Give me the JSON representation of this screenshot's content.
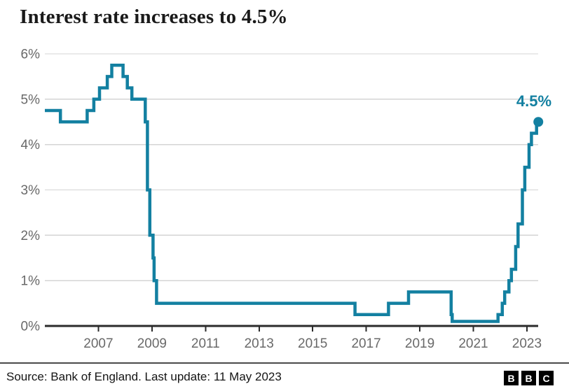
{
  "header": {
    "title": "Interest rate increases to 4.5%"
  },
  "footer": {
    "source": "Source: Bank of England. Last update: 11 May 2023",
    "logo_letters": [
      "B",
      "B",
      "C"
    ]
  },
  "colors": {
    "line": "#1380A1",
    "end_dot": "#1380A1",
    "end_label": "#1380A1",
    "grid": "#d4d4d4",
    "axis": "#2b2b2b",
    "tick_label": "#696969",
    "title_text": "#1a1a1a"
  },
  "chart_data": {
    "type": "line",
    "subtype": "step",
    "title": "Interest rate increases to 4.5%",
    "xlabel": "",
    "ylabel": "",
    "grid": "horizontal only",
    "legend": "none",
    "xlim": [
      2005.0,
      2023.42
    ],
    "ylim": [
      0,
      6
    ],
    "x_ticks": [
      2007,
      2009,
      2011,
      2013,
      2015,
      2017,
      2019,
      2021,
      2023
    ],
    "y_ticks": [
      {
        "value": 0,
        "label": "0%"
      },
      {
        "value": 1,
        "label": "1%"
      },
      {
        "value": 2,
        "label": "2%"
      },
      {
        "value": 3,
        "label": "3%"
      },
      {
        "value": 4,
        "label": "4%"
      },
      {
        "value": 5,
        "label": "5%"
      },
      {
        "value": 6,
        "label": "6%"
      }
    ],
    "end_annotation": {
      "label": "4.5%",
      "value": 4.5,
      "date": "May 2023"
    },
    "series": [
      {
        "name": "Bank of England base interest rate (%)",
        "points": [
          {
            "date": "Jan 2005",
            "x": 2005.0,
            "y": 4.75
          },
          {
            "date": "Aug 2005",
            "x": 2005.58,
            "y": 4.5
          },
          {
            "date": "Aug 2006",
            "x": 2006.58,
            "y": 4.75
          },
          {
            "date": "Nov 2006",
            "x": 2006.83,
            "y": 5.0
          },
          {
            "date": "Jan 2007",
            "x": 2007.04,
            "y": 5.25
          },
          {
            "date": "May 2007",
            "x": 2007.33,
            "y": 5.5
          },
          {
            "date": "Jul 2007",
            "x": 2007.5,
            "y": 5.75
          },
          {
            "date": "Dec 2007",
            "x": 2007.92,
            "y": 5.5
          },
          {
            "date": "Feb 2008",
            "x": 2008.08,
            "y": 5.25
          },
          {
            "date": "Apr 2008",
            "x": 2008.25,
            "y": 5.0
          },
          {
            "date": "Oct 2008",
            "x": 2008.75,
            "y": 4.5
          },
          {
            "date": "Nov 2008",
            "x": 2008.83,
            "y": 3.0
          },
          {
            "date": "Dec 2008",
            "x": 2008.92,
            "y": 2.0
          },
          {
            "date": "Jan 2009",
            "x": 2009.04,
            "y": 1.5
          },
          {
            "date": "Feb 2009",
            "x": 2009.08,
            "y": 1.0
          },
          {
            "date": "Mar 2009",
            "x": 2009.17,
            "y": 0.5
          },
          {
            "date": "Aug 2016",
            "x": 2016.58,
            "y": 0.25
          },
          {
            "date": "Nov 2017",
            "x": 2017.83,
            "y": 0.5
          },
          {
            "date": "Aug 2018",
            "x": 2018.58,
            "y": 0.75
          },
          {
            "date": "Mar 2020",
            "x": 2020.17,
            "y": 0.25
          },
          {
            "date": "Mar 2020",
            "x": 2020.21,
            "y": 0.1
          },
          {
            "date": "Dec 2021",
            "x": 2021.92,
            "y": 0.25
          },
          {
            "date": "Feb 2022",
            "x": 2022.08,
            "y": 0.5
          },
          {
            "date": "Mar 2022",
            "x": 2022.17,
            "y": 0.75
          },
          {
            "date": "May 2022",
            "x": 2022.33,
            "y": 1.0
          },
          {
            "date": "Jun 2022",
            "x": 2022.42,
            "y": 1.25
          },
          {
            "date": "Aug 2022",
            "x": 2022.58,
            "y": 1.75
          },
          {
            "date": "Sep 2022",
            "x": 2022.67,
            "y": 2.25
          },
          {
            "date": "Nov 2022",
            "x": 2022.83,
            "y": 3.0
          },
          {
            "date": "Dec 2022",
            "x": 2022.92,
            "y": 3.5
          },
          {
            "date": "Feb 2023",
            "x": 2023.08,
            "y": 4.0
          },
          {
            "date": "Mar 2023",
            "x": 2023.17,
            "y": 4.25
          },
          {
            "date": "May 2023",
            "x": 2023.36,
            "y": 4.5
          }
        ]
      }
    ]
  }
}
